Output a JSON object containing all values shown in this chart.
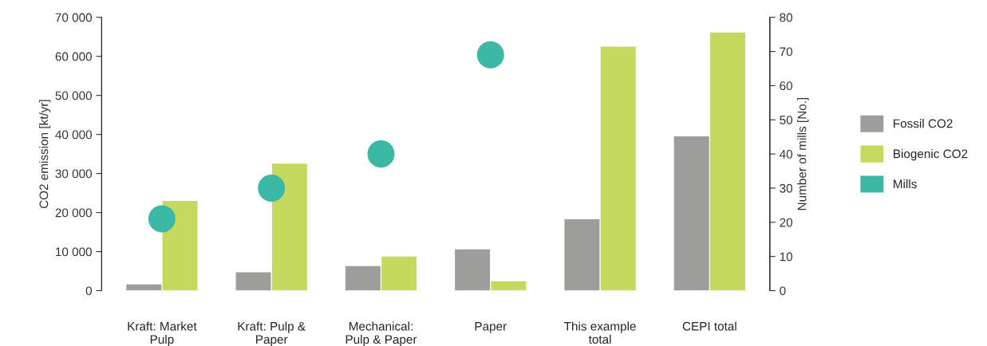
{
  "chart_data": {
    "type": "bar",
    "categories": [
      "Kraft: Market\nPulp",
      "Kraft: Pulp &\nPaper",
      "Mechanical:\nPulp & Paper",
      "Paper",
      "This example\ntotal",
      "CEPI total"
    ],
    "ylabel": "CO2 emission [kt/yr]",
    "y2label": "Number of mills [No.]",
    "series": [
      {
        "name": "Fossil CO2",
        "color": "#9d9d9b",
        "values": [
          1600,
          4700,
          6300,
          10600,
          18300,
          39500
        ]
      },
      {
        "name": "Biogenic CO2",
        "color": "#c5d95e",
        "values": [
          23000,
          32500,
          8750,
          2400,
          62500,
          66100
        ]
      },
      {
        "name": "Mills",
        "type": "scatter",
        "axis": "y2",
        "color": "#3cb8a6",
        "values": [
          21,
          30,
          40,
          69,
          null,
          null
        ]
      }
    ],
    "ylim": [
      0,
      70000
    ],
    "yticks": [
      {
        "value": 0,
        "label": "0"
      },
      {
        "value": 10000,
        "label": "10 000"
      },
      {
        "value": 20000,
        "label": "20 000"
      },
      {
        "value": 30000,
        "label": "30 000"
      },
      {
        "value": 40000,
        "label": "40 000"
      },
      {
        "value": 50000,
        "label": "50 000"
      },
      {
        "value": 60000,
        "label": "60 000"
      },
      {
        "value": 70000,
        "label": "70 000"
      }
    ],
    "y2lim": [
      0,
      80
    ],
    "y2ticks": [
      0,
      10,
      20,
      30,
      40,
      50,
      60,
      70,
      80
    ],
    "grid": false,
    "legend": "right",
    "marker": "circle"
  }
}
